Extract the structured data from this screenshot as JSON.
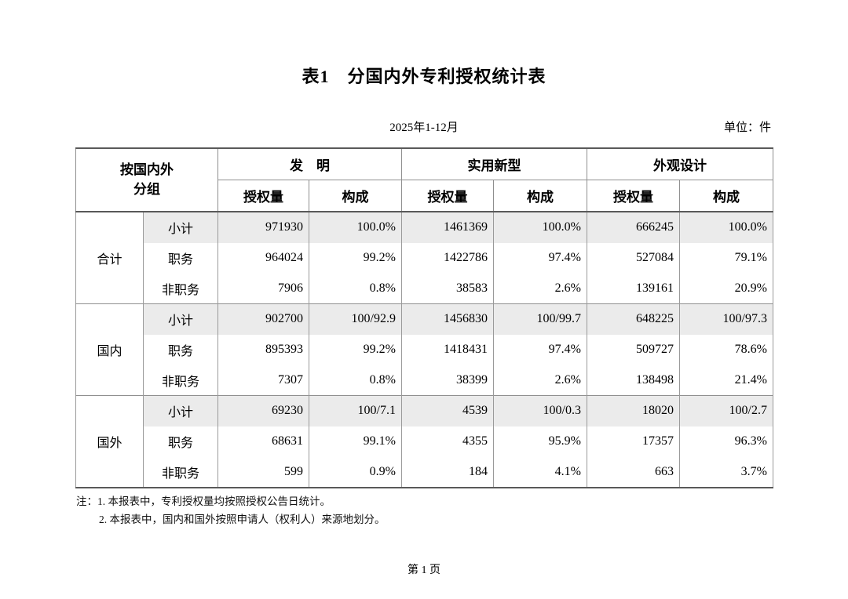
{
  "page": {
    "title": "表1　分国内外专利授权统计表",
    "period": "2025年1-12月",
    "unit_label": "单位：件",
    "footer": "第 1 页"
  },
  "table": {
    "header": {
      "group_label_line1": "按国内外",
      "group_label_line2": "分组",
      "sections": [
        {
          "label": "发　明",
          "sub1": "授权量",
          "sub2": "构成"
        },
        {
          "label": "实用新型",
          "sub1": "授权量",
          "sub2": "构成"
        },
        {
          "label": "外观设计",
          "sub1": "授权量",
          "sub2": "构成"
        }
      ]
    },
    "groups": [
      {
        "label": "合计",
        "rows": [
          {
            "label": "小计",
            "highlight": true,
            "values": [
              "971930",
              "100.0%",
              "1461369",
              "100.0%",
              "666245",
              "100.0%"
            ]
          },
          {
            "label": "职务",
            "highlight": false,
            "values": [
              "964024",
              "99.2%",
              "1422786",
              "97.4%",
              "527084",
              "79.1%"
            ]
          },
          {
            "label": "非职务",
            "highlight": false,
            "values": [
              "7906",
              "0.8%",
              "38583",
              "2.6%",
              "139161",
              "20.9%"
            ]
          }
        ]
      },
      {
        "label": "国内",
        "rows": [
          {
            "label": "小计",
            "highlight": true,
            "values": [
              "902700",
              "100/92.9",
              "1456830",
              "100/99.7",
              "648225",
              "100/97.3"
            ]
          },
          {
            "label": "职务",
            "highlight": false,
            "values": [
              "895393",
              "99.2%",
              "1418431",
              "97.4%",
              "509727",
              "78.6%"
            ]
          },
          {
            "label": "非职务",
            "highlight": false,
            "values": [
              "7307",
              "0.8%",
              "38399",
              "2.6%",
              "138498",
              "21.4%"
            ]
          }
        ]
      },
      {
        "label": "国外",
        "rows": [
          {
            "label": "小计",
            "highlight": true,
            "values": [
              "69230",
              "100/7.1",
              "4539",
              "100/0.3",
              "18020",
              "100/2.7"
            ]
          },
          {
            "label": "职务",
            "highlight": false,
            "values": [
              "68631",
              "99.1%",
              "4355",
              "95.9%",
              "17357",
              "96.3%"
            ]
          },
          {
            "label": "非职务",
            "highlight": false,
            "values": [
              "599",
              "0.9%",
              "184",
              "4.1%",
              "663",
              "3.7%"
            ]
          }
        ]
      }
    ]
  },
  "notes": {
    "prefix": "注：",
    "items": [
      "1. 本报表中，专利授权量均按照授权公告日统计。",
      "2. 本报表中，国内和国外按照申请人（权利人）来源地划分。"
    ]
  }
}
